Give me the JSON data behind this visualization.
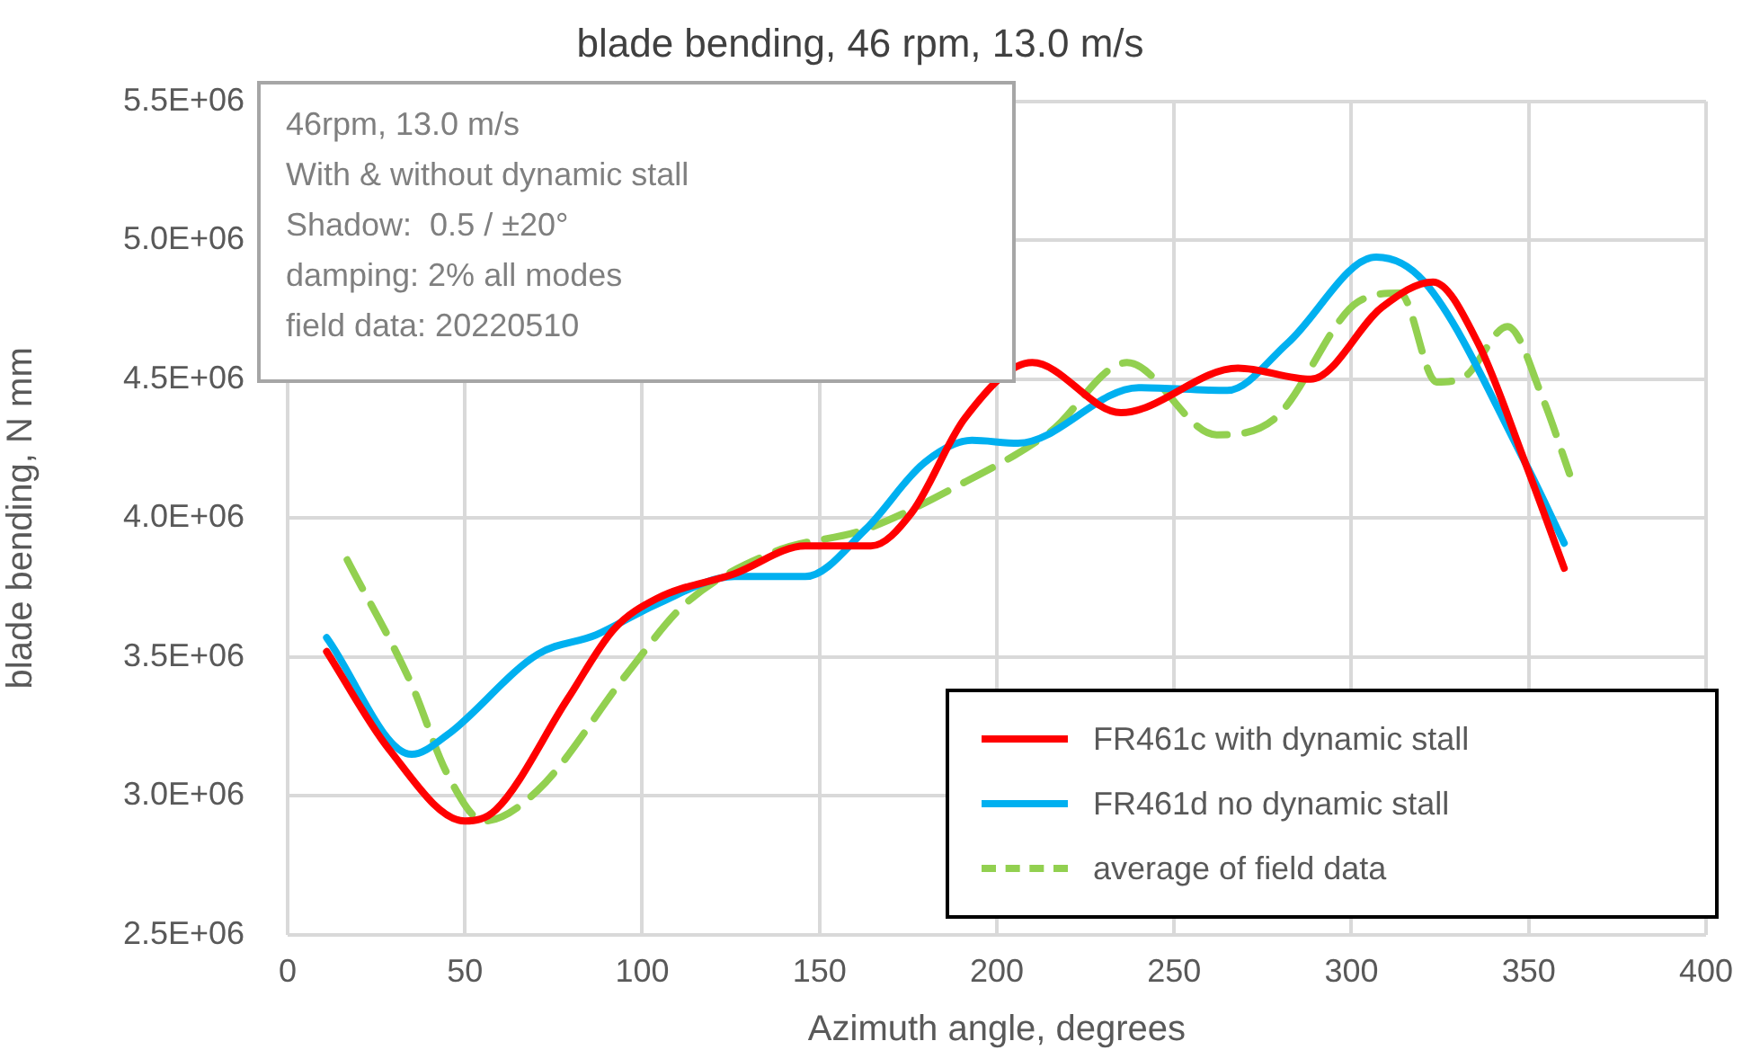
{
  "chart_data": {
    "type": "line",
    "title": "blade bending, 46 rpm, 13.0 m/s",
    "xlabel": "Azimuth angle, degrees",
    "ylabel": "blade bending, N mm",
    "annotations": [
      "46rpm, 13.0 m/s",
      "With & without dynamic stall",
      "Shadow:  0.5 / ±20°",
      "damping: 2% all modes",
      "field data: 20220510"
    ],
    "xlim": [
      0,
      400
    ],
    "xticks": [
      0,
      50,
      100,
      150,
      200,
      250,
      300,
      350,
      400
    ],
    "ylim": [
      2500000,
      5500000
    ],
    "yticks": [
      {
        "value": 2500000,
        "label": "2.5E+06"
      },
      {
        "value": 3000000,
        "label": "3.0E+06"
      },
      {
        "value": 3500000,
        "label": "3.5E+06"
      },
      {
        "value": 4000000,
        "label": "4.0E+06"
      },
      {
        "value": 4500000,
        "label": "4.5E+06"
      },
      {
        "value": 5000000,
        "label": "5.0E+06"
      },
      {
        "value": 5500000,
        "label": "5.5E+06"
      }
    ],
    "grid": true,
    "legend": "bottom right",
    "marker": "none",
    "series": [
      {
        "name": "FR461c with dynamic stall",
        "color": "#ff0000",
        "line_style": "solid",
        "x": [
          11,
          28.5,
          50,
          58.7,
          79,
          92,
          104,
          126,
          146,
          164.5,
          176,
          191,
          210,
          235,
          268,
          288.5,
          308.7,
          323,
          335.7,
          349,
          360
        ],
        "values": [
          3520000,
          3170000,
          2910000,
          2950000,
          3350000,
          3600000,
          3710000,
          3800000,
          3900000,
          3900000,
          4020000,
          4360000,
          4560000,
          4380000,
          4540000,
          4500000,
          4760000,
          4850000,
          4630000,
          4200000,
          3820000
        ]
      },
      {
        "name": "FR461d no dynamic stall",
        "color": "#00b0f0",
        "line_style": "solid",
        "x": [
          11,
          35,
          45,
          70.5,
          87,
          104,
          126,
          146,
          163,
          179.6,
          193,
          206,
          240,
          265,
          282,
          307,
          320.6,
          349,
          360
        ],
        "values": [
          3570000,
          3150000,
          3220000,
          3510000,
          3580000,
          3690000,
          3790000,
          3790000,
          3960000,
          4200000,
          4280000,
          4270000,
          4470000,
          4460000,
          4630000,
          4940000,
          4850000,
          4200000,
          3910000
        ]
      },
      {
        "name": "average of field data",
        "color": "#92d050",
        "line_style": "dashed",
        "x": [
          16.8,
          35,
          45,
          55.4,
          70.5,
          95.7,
          112,
          137.5,
          163,
          188,
          215,
          236.7,
          262,
          278.5,
          302,
          313.7,
          324,
          332,
          344,
          354,
          361.5
        ],
        "values": [
          3850000,
          3400000,
          3080000,
          2910000,
          3020000,
          3440000,
          3690000,
          3880000,
          3960000,
          4110000,
          4310000,
          4560000,
          4300000,
          4360000,
          4780000,
          4810000,
          4490000,
          4510000,
          4690000,
          4430000,
          4160000
        ]
      }
    ]
  }
}
